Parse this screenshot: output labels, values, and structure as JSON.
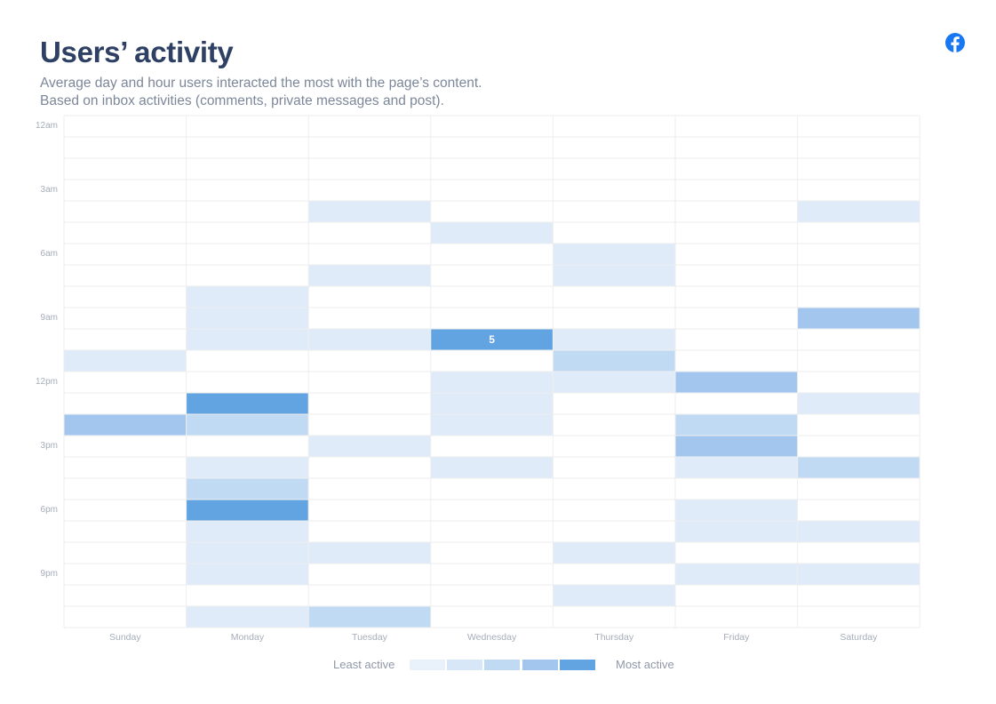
{
  "header": {
    "title": "Users’ activity",
    "subtitle_line1": "Average day and hour users interacted the most with the page’s content.",
    "subtitle_line2": "Based on inbox activities (comments, private messages and post)."
  },
  "brand": {
    "icon": "facebook-icon",
    "color": "#1877f2"
  },
  "colors": {
    "empty": "#ffffff",
    "grid": "#eeeeee",
    "levels": [
      "#ffffff",
      "#dfebf8",
      "#c1daf3",
      "#a2c6ed",
      "#62a3e2",
      "#62a3e2"
    ],
    "cell_label": "#ffffff",
    "axis_text": "#a6adb9"
  },
  "legend": {
    "least_label": "Least active",
    "most_label": "Most active",
    "swatches": [
      "#e9f1fa",
      "#d8e7f7",
      "#c1daf3",
      "#a2c6ed",
      "#62a3e2"
    ]
  },
  "chart_data": {
    "type": "heatmap",
    "x": [
      "Sunday",
      "Monday",
      "Tuesday",
      "Wednesday",
      "Thursday",
      "Friday",
      "Saturday"
    ],
    "y_hours": [
      0,
      1,
      2,
      3,
      4,
      5,
      6,
      7,
      8,
      9,
      10,
      11,
      12,
      13,
      14,
      15,
      16,
      17,
      18,
      19,
      20,
      21,
      22,
      23
    ],
    "y_tick_labels": [
      "12am",
      "3am",
      "6am",
      "9am",
      "12pm",
      "3pm",
      "6pm",
      "9pm"
    ],
    "y_tick_hours": [
      0,
      3,
      6,
      9,
      12,
      15,
      18,
      21
    ],
    "value_label": {
      "day": "Wednesday",
      "hour": 10,
      "text": "5"
    },
    "values": [
      [
        0,
        0,
        0,
        0,
        0,
        0,
        0
      ],
      [
        0,
        0,
        0,
        0,
        0,
        0,
        0
      ],
      [
        0,
        0,
        0,
        0,
        0,
        0,
        0
      ],
      [
        0,
        0,
        0,
        0,
        0,
        0,
        0
      ],
      [
        0,
        0,
        1,
        0,
        0,
        0,
        1
      ],
      [
        0,
        0,
        0,
        1,
        0,
        0,
        0
      ],
      [
        0,
        0,
        0,
        0,
        1,
        0,
        0
      ],
      [
        0,
        0,
        1,
        0,
        1,
        0,
        0
      ],
      [
        0,
        1,
        0,
        0,
        0,
        0,
        0
      ],
      [
        0,
        1,
        0,
        0,
        0,
        0,
        3
      ],
      [
        0,
        1,
        1,
        5,
        1,
        0,
        0
      ],
      [
        1,
        0,
        0,
        0,
        2,
        0,
        0
      ],
      [
        0,
        0,
        0,
        1,
        1,
        3,
        0
      ],
      [
        0,
        4,
        0,
        1,
        0,
        0,
        1
      ],
      [
        3,
        2,
        0,
        1,
        0,
        2,
        0
      ],
      [
        0,
        0,
        1,
        0,
        0,
        3,
        0
      ],
      [
        0,
        1,
        0,
        1,
        0,
        1,
        2
      ],
      [
        0,
        2,
        0,
        0,
        0,
        0,
        0
      ],
      [
        0,
        4,
        0,
        0,
        0,
        1,
        0
      ],
      [
        0,
        1,
        0,
        0,
        0,
        1,
        1
      ],
      [
        0,
        1,
        1,
        0,
        1,
        0,
        0
      ],
      [
        0,
        1,
        0,
        0,
        0,
        1,
        1
      ],
      [
        0,
        0,
        0,
        0,
        1,
        0,
        0
      ],
      [
        0,
        1,
        2,
        0,
        0,
        0,
        0
      ]
    ],
    "legend_position": "bottom",
    "grid": true
  }
}
